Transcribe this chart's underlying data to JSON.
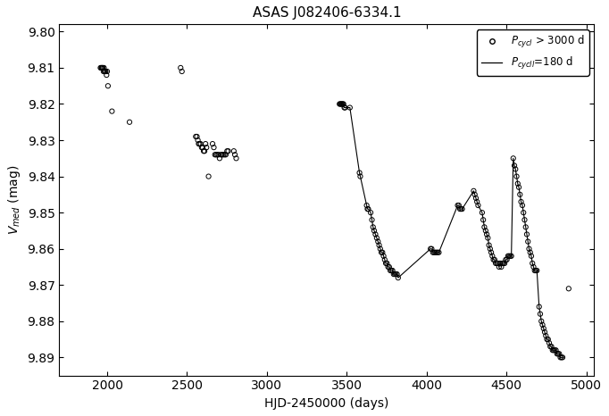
{
  "title": "ASAS J082406-6334.1",
  "xlabel": "HJD-2450000 (days)",
  "ylabel": "$V_{med}$ (mag)",
  "xlim": [
    1700,
    5050
  ],
  "ylim": [
    9.895,
    9.798
  ],
  "xticks": [
    2000,
    2500,
    3000,
    3500,
    4000,
    4500,
    5000
  ],
  "yticks": [
    9.8,
    9.81,
    9.82,
    9.83,
    9.84,
    9.85,
    9.86,
    9.87,
    9.88,
    9.89
  ],
  "scatter_color": "black",
  "line_color": "black",
  "background": "white",
  "legend_label_scatter": "$P_{cycl}$ > 3000 d",
  "legend_label_line": "$P_{cycll}$=180 d",
  "scatter_points": [
    [
      1958,
      9.81
    ],
    [
      1963,
      9.81
    ],
    [
      1967,
      9.81
    ],
    [
      1970,
      9.81
    ],
    [
      1973,
      9.81
    ],
    [
      1977,
      9.811
    ],
    [
      1980,
      9.81
    ],
    [
      1983,
      9.811
    ],
    [
      1987,
      9.811
    ],
    [
      1991,
      9.811
    ],
    [
      1996,
      9.812
    ],
    [
      2000,
      9.811
    ],
    [
      2005,
      9.815
    ],
    [
      2030,
      9.822
    ],
    [
      2140,
      9.825
    ],
    [
      2460,
      9.81
    ],
    [
      2468,
      9.811
    ],
    [
      2555,
      9.829
    ],
    [
      2562,
      9.829
    ],
    [
      2568,
      9.83
    ],
    [
      2573,
      9.831
    ],
    [
      2578,
      9.831
    ],
    [
      2585,
      9.831
    ],
    [
      2592,
      9.832
    ],
    [
      2598,
      9.832
    ],
    [
      2604,
      9.833
    ],
    [
      2610,
      9.833
    ],
    [
      2616,
      9.831
    ],
    [
      2622,
      9.832
    ],
    [
      2635,
      9.84
    ],
    [
      2660,
      9.831
    ],
    [
      2668,
      9.832
    ],
    [
      2675,
      9.834
    ],
    [
      2682,
      9.834
    ],
    [
      2690,
      9.834
    ],
    [
      2697,
      9.834
    ],
    [
      2704,
      9.835
    ],
    [
      2712,
      9.834
    ],
    [
      2720,
      9.834
    ],
    [
      2728,
      9.834
    ],
    [
      2736,
      9.834
    ],
    [
      2743,
      9.834
    ],
    [
      2751,
      9.833
    ],
    [
      2758,
      9.833
    ],
    [
      2793,
      9.833
    ],
    [
      2800,
      9.834
    ],
    [
      2808,
      9.835
    ],
    [
      3455,
      9.82
    ],
    [
      3460,
      9.82
    ],
    [
      3465,
      9.82
    ],
    [
      3470,
      9.82
    ],
    [
      3475,
      9.82
    ],
    [
      3480,
      9.82
    ],
    [
      3485,
      9.821
    ],
    [
      3490,
      9.821
    ],
    [
      3520,
      9.821
    ],
    [
      3580,
      9.839
    ],
    [
      3585,
      9.84
    ],
    [
      3625,
      9.848
    ],
    [
      3630,
      9.849
    ],
    [
      3635,
      9.849
    ],
    [
      3650,
      9.85
    ],
    [
      3658,
      9.852
    ],
    [
      3665,
      9.854
    ],
    [
      3672,
      9.855
    ],
    [
      3680,
      9.856
    ],
    [
      3688,
      9.857
    ],
    [
      3696,
      9.858
    ],
    [
      3703,
      9.859
    ],
    [
      3710,
      9.86
    ],
    [
      3717,
      9.861
    ],
    [
      3724,
      9.861
    ],
    [
      3731,
      9.862
    ],
    [
      3738,
      9.863
    ],
    [
      3745,
      9.864
    ],
    [
      3752,
      9.864
    ],
    [
      3759,
      9.865
    ],
    [
      3766,
      9.865
    ],
    [
      3773,
      9.866
    ],
    [
      3780,
      9.866
    ],
    [
      3787,
      9.866
    ],
    [
      3794,
      9.867
    ],
    [
      3801,
      9.867
    ],
    [
      3808,
      9.867
    ],
    [
      3815,
      9.867
    ],
    [
      3822,
      9.868
    ],
    [
      4025,
      9.86
    ],
    [
      4032,
      9.86
    ],
    [
      4040,
      9.861
    ],
    [
      4048,
      9.861
    ],
    [
      4055,
      9.861
    ],
    [
      4062,
      9.861
    ],
    [
      4070,
      9.861
    ],
    [
      4077,
      9.861
    ],
    [
      4195,
      9.848
    ],
    [
      4202,
      9.848
    ],
    [
      4209,
      9.849
    ],
    [
      4216,
      9.849
    ],
    [
      4223,
      9.849
    ],
    [
      4295,
      9.844
    ],
    [
      4302,
      9.845
    ],
    [
      4309,
      9.846
    ],
    [
      4316,
      9.847
    ],
    [
      4323,
      9.848
    ],
    [
      4348,
      9.85
    ],
    [
      4355,
      9.852
    ],
    [
      4362,
      9.854
    ],
    [
      4370,
      9.855
    ],
    [
      4377,
      9.856
    ],
    [
      4384,
      9.857
    ],
    [
      4391,
      9.859
    ],
    [
      4398,
      9.86
    ],
    [
      4405,
      9.861
    ],
    [
      4412,
      9.862
    ],
    [
      4419,
      9.863
    ],
    [
      4426,
      9.863
    ],
    [
      4433,
      9.864
    ],
    [
      4440,
      9.864
    ],
    [
      4447,
      9.864
    ],
    [
      4454,
      9.865
    ],
    [
      4461,
      9.864
    ],
    [
      4468,
      9.865
    ],
    [
      4475,
      9.864
    ],
    [
      4482,
      9.864
    ],
    [
      4489,
      9.864
    ],
    [
      4496,
      9.863
    ],
    [
      4503,
      9.863
    ],
    [
      4510,
      9.862
    ],
    [
      4517,
      9.862
    ],
    [
      4524,
      9.862
    ],
    [
      4531,
      9.862
    ],
    [
      4543,
      9.835
    ],
    [
      4550,
      9.837
    ],
    [
      4557,
      9.838
    ],
    [
      4564,
      9.84
    ],
    [
      4571,
      9.842
    ],
    [
      4578,
      9.843
    ],
    [
      4585,
      9.845
    ],
    [
      4592,
      9.847
    ],
    [
      4600,
      9.848
    ],
    [
      4607,
      9.85
    ],
    [
      4614,
      9.852
    ],
    [
      4621,
      9.854
    ],
    [
      4628,
      9.856
    ],
    [
      4635,
      9.858
    ],
    [
      4642,
      9.86
    ],
    [
      4649,
      9.861
    ],
    [
      4656,
      9.862
    ],
    [
      4663,
      9.864
    ],
    [
      4670,
      9.865
    ],
    [
      4677,
      9.866
    ],
    [
      4684,
      9.866
    ],
    [
      4691,
      9.866
    ],
    [
      4705,
      9.876
    ],
    [
      4712,
      9.878
    ],
    [
      4719,
      9.88
    ],
    [
      4726,
      9.881
    ],
    [
      4733,
      9.882
    ],
    [
      4740,
      9.883
    ],
    [
      4747,
      9.884
    ],
    [
      4754,
      9.885
    ],
    [
      4761,
      9.885
    ],
    [
      4768,
      9.886
    ],
    [
      4775,
      9.887
    ],
    [
      4782,
      9.887
    ],
    [
      4789,
      9.888
    ],
    [
      4796,
      9.888
    ],
    [
      4803,
      9.888
    ],
    [
      4810,
      9.888
    ],
    [
      4817,
      9.889
    ],
    [
      4824,
      9.889
    ],
    [
      4831,
      9.889
    ],
    [
      4838,
      9.89
    ],
    [
      4845,
      9.89
    ],
    [
      4852,
      9.89
    ],
    [
      4890,
      9.871
    ]
  ],
  "line_segments": [
    [
      [
        3455,
        9.82
      ],
      [
        3460,
        9.82
      ],
      [
        3465,
        9.82
      ],
      [
        3470,
        9.82
      ],
      [
        3475,
        9.82
      ],
      [
        3480,
        9.82
      ],
      [
        3485,
        9.821
      ],
      [
        3490,
        9.821
      ],
      [
        3520,
        9.821
      ],
      [
        3580,
        9.839
      ],
      [
        3585,
        9.84
      ],
      [
        3625,
        9.848
      ],
      [
        3630,
        9.849
      ],
      [
        3635,
        9.849
      ],
      [
        3650,
        9.85
      ],
      [
        3658,
        9.852
      ],
      [
        3665,
        9.854
      ],
      [
        3672,
        9.855
      ],
      [
        3680,
        9.856
      ],
      [
        3688,
        9.857
      ],
      [
        3696,
        9.858
      ],
      [
        3703,
        9.859
      ],
      [
        3710,
        9.86
      ],
      [
        3717,
        9.861
      ],
      [
        3724,
        9.861
      ],
      [
        3731,
        9.862
      ],
      [
        3738,
        9.863
      ],
      [
        3745,
        9.864
      ],
      [
        3752,
        9.864
      ],
      [
        3759,
        9.865
      ],
      [
        3766,
        9.865
      ],
      [
        3773,
        9.866
      ],
      [
        3780,
        9.866
      ],
      [
        3787,
        9.866
      ],
      [
        3794,
        9.867
      ],
      [
        3801,
        9.867
      ],
      [
        3808,
        9.867
      ],
      [
        3815,
        9.867
      ],
      [
        3822,
        9.868
      ],
      [
        4025,
        9.86
      ],
      [
        4032,
        9.86
      ],
      [
        4040,
        9.861
      ],
      [
        4048,
        9.861
      ],
      [
        4055,
        9.861
      ],
      [
        4062,
        9.861
      ],
      [
        4070,
        9.861
      ],
      [
        4077,
        9.861
      ],
      [
        4195,
        9.848
      ],
      [
        4202,
        9.848
      ],
      [
        4209,
        9.849
      ],
      [
        4216,
        9.849
      ],
      [
        4223,
        9.849
      ],
      [
        4295,
        9.844
      ],
      [
        4302,
        9.845
      ],
      [
        4309,
        9.846
      ],
      [
        4316,
        9.847
      ],
      [
        4323,
        9.848
      ],
      [
        4348,
        9.85
      ],
      [
        4355,
        9.852
      ],
      [
        4362,
        9.854
      ],
      [
        4370,
        9.855
      ],
      [
        4377,
        9.856
      ],
      [
        4384,
        9.857
      ],
      [
        4391,
        9.859
      ],
      [
        4398,
        9.86
      ],
      [
        4405,
        9.861
      ],
      [
        4412,
        9.862
      ],
      [
        4419,
        9.863
      ],
      [
        4426,
        9.863
      ],
      [
        4433,
        9.864
      ],
      [
        4440,
        9.864
      ],
      [
        4447,
        9.864
      ],
      [
        4454,
        9.865
      ],
      [
        4461,
        9.864
      ],
      [
        4468,
        9.865
      ],
      [
        4475,
        9.864
      ],
      [
        4482,
        9.864
      ],
      [
        4489,
        9.864
      ],
      [
        4496,
        9.863
      ],
      [
        4503,
        9.863
      ],
      [
        4510,
        9.862
      ],
      [
        4517,
        9.862
      ],
      [
        4524,
        9.862
      ],
      [
        4531,
        9.862
      ],
      [
        4543,
        9.835
      ],
      [
        4550,
        9.837
      ],
      [
        4557,
        9.838
      ],
      [
        4564,
        9.84
      ],
      [
        4571,
        9.842
      ],
      [
        4578,
        9.843
      ],
      [
        4585,
        9.845
      ],
      [
        4592,
        9.847
      ],
      [
        4600,
        9.848
      ],
      [
        4607,
        9.85
      ],
      [
        4614,
        9.852
      ],
      [
        4621,
        9.854
      ],
      [
        4628,
        9.856
      ],
      [
        4635,
        9.858
      ],
      [
        4642,
        9.86
      ],
      [
        4649,
        9.861
      ],
      [
        4656,
        9.862
      ],
      [
        4663,
        9.864
      ],
      [
        4670,
        9.865
      ],
      [
        4677,
        9.866
      ],
      [
        4684,
        9.866
      ],
      [
        4691,
        9.866
      ],
      [
        4705,
        9.876
      ],
      [
        4712,
        9.878
      ],
      [
        4719,
        9.88
      ],
      [
        4726,
        9.881
      ],
      [
        4733,
        9.882
      ],
      [
        4740,
        9.883
      ],
      [
        4747,
        9.884
      ],
      [
        4754,
        9.885
      ],
      [
        4761,
        9.885
      ],
      [
        4768,
        9.886
      ],
      [
        4775,
        9.887
      ],
      [
        4782,
        9.887
      ],
      [
        4789,
        9.888
      ],
      [
        4796,
        9.888
      ],
      [
        4803,
        9.888
      ],
      [
        4810,
        9.888
      ],
      [
        4817,
        9.889
      ],
      [
        4824,
        9.889
      ],
      [
        4831,
        9.889
      ],
      [
        4838,
        9.89
      ],
      [
        4845,
        9.89
      ],
      [
        4852,
        9.89
      ]
    ]
  ]
}
